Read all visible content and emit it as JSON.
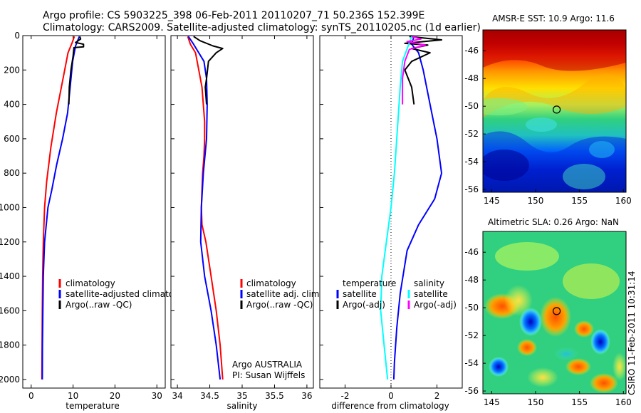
{
  "figure": {
    "title_line1": "Argo profile: CS 5903225_398 06-Feb-2011 20110207_71 50.236S 152.399E",
    "title_line2": "Climatology: CARS2009. Satellite-adjusted climatology: synTS_20110205.nc (1d earlier)",
    "credit": "CSIRO 11-Feb-2011 10:31:14"
  },
  "colors": {
    "climatology": "#ff0000",
    "satellite": "#0000ff",
    "argo": "#000000",
    "salinity_satellite": "#00ffff",
    "salinity_argo": "#ff00ff"
  },
  "chart_data": [
    {
      "type": "line",
      "panel": "temperature",
      "xlabel": "temperature",
      "ylabel": "",
      "xlim": [
        -2,
        32
      ],
      "ylim": [
        2050,
        0
      ],
      "xticks": [
        0,
        10,
        20,
        30
      ],
      "yticks": [
        0,
        200,
        400,
        600,
        800,
        1000,
        1200,
        1400,
        1600,
        1800,
        2000
      ],
      "legend": [
        "climatology",
        "satellite-adjusted climatolog",
        "Argo(..raw -QC)"
      ],
      "series": [
        {
          "name": "climatology",
          "color": "#ff0000",
          "points": [
            [
              10.3,
              5
            ],
            [
              9.8,
              40
            ],
            [
              8.8,
              100
            ],
            [
              7.6,
              250
            ],
            [
              6.0,
              450
            ],
            [
              4.7,
              650
            ],
            [
              3.7,
              850
            ],
            [
              3.2,
              1000
            ],
            [
              2.9,
              1200
            ],
            [
              2.75,
              1400
            ],
            [
              2.65,
              1600
            ],
            [
              2.6,
              1800
            ],
            [
              2.55,
              2000
            ]
          ]
        },
        {
          "name": "satellite-adjusted climatolog",
          "color": "#0000ff",
          "points": [
            [
              11.5,
              5
            ],
            [
              10.6,
              60
            ],
            [
              9.9,
              150
            ],
            [
              9.3,
              300
            ],
            [
              8.7,
              450
            ],
            [
              7.5,
              600
            ],
            [
              6.1,
              750
            ],
            [
              4.9,
              900
            ],
            [
              4.0,
              1000
            ],
            [
              3.2,
              1200
            ],
            [
              2.9,
              1400
            ],
            [
              2.8,
              1600
            ],
            [
              2.7,
              1800
            ],
            [
              2.65,
              2000
            ]
          ]
        },
        {
          "name": "Argo(..raw -QC)",
          "color": "#000000",
          "points": [
            [
              11.6,
              5
            ],
            [
              11.8,
              20
            ],
            [
              10.6,
              40
            ],
            [
              12.5,
              50
            ],
            [
              12.5,
              65
            ],
            [
              10.2,
              70
            ],
            [
              10.0,
              120
            ],
            [
              9.5,
              200
            ],
            [
              9.1,
              300
            ],
            [
              9.0,
              400
            ]
          ]
        }
      ]
    },
    {
      "type": "line",
      "panel": "salinity",
      "xlabel": "salinity",
      "ylabel": "",
      "xlim": [
        33.9,
        36.1
      ],
      "ylim": [
        2050,
        0
      ],
      "xticks": [
        34,
        34.5,
        35,
        35.5,
        36
      ],
      "yticks": [],
      "legend": [
        "climatology",
        "satellite adj. clim.",
        "Argo(..raw -QC)"
      ],
      "annotation": [
        "Argo AUSTRALIA",
        "PI: Susan Wijffels"
      ],
      "series": [
        {
          "name": "climatology",
          "color": "#ff0000",
          "points": [
            [
              34.16,
              5
            ],
            [
              34.2,
              50
            ],
            [
              34.28,
              100
            ],
            [
              34.33,
              200
            ],
            [
              34.38,
              300
            ],
            [
              34.42,
              500
            ],
            [
              34.42,
              600
            ],
            [
              34.41,
              700
            ],
            [
              34.39,
              800
            ],
            [
              34.37,
              1000
            ],
            [
              34.38,
              1100
            ],
            [
              34.44,
              1200
            ],
            [
              34.52,
              1400
            ],
            [
              34.6,
              1600
            ],
            [
              34.66,
              1800
            ],
            [
              34.7,
              2000
            ]
          ]
        },
        {
          "name": "satellite adj. clim.",
          "color": "#0000ff",
          "points": [
            [
              34.17,
              5
            ],
            [
              34.25,
              50
            ],
            [
              34.41,
              150
            ],
            [
              34.45,
              250
            ],
            [
              34.46,
              400
            ],
            [
              34.45,
              600
            ],
            [
              34.4,
              800
            ],
            [
              34.37,
              1000
            ],
            [
              34.36,
              1200
            ],
            [
              34.42,
              1400
            ],
            [
              34.52,
              1600
            ],
            [
              34.6,
              1800
            ],
            [
              34.66,
              2000
            ]
          ]
        },
        {
          "name": "Argo(..raw -QC)",
          "color": "#000000",
          "points": [
            [
              34.25,
              5
            ],
            [
              34.35,
              30
            ],
            [
              34.55,
              60
            ],
            [
              34.7,
              75
            ],
            [
              34.6,
              100
            ],
            [
              34.48,
              150
            ],
            [
              34.45,
              250
            ],
            [
              34.43,
              300
            ],
            [
              34.45,
              400
            ]
          ]
        }
      ]
    },
    {
      "type": "line",
      "panel": "difference",
      "xlabel": "difference from climatology",
      "ylabel": "",
      "xlim": [
        -3.1,
        3.1
      ],
      "ylim": [
        2050,
        0
      ],
      "xticks": [
        -2,
        0,
        2
      ],
      "yticks": [],
      "legend_temperature_header": "temperature",
      "legend_salinity_header": "salinity",
      "legend": [
        "satellite",
        "Argo(-adj)",
        "satellite",
        "Argo(-adj)"
      ],
      "series": [
        {
          "name": "satellite",
          "group": "temperature",
          "color": "#0000ff",
          "points": [
            [
              1.0,
              5
            ],
            [
              0.9,
              50
            ],
            [
              1.2,
              100
            ],
            [
              1.4,
              200
            ],
            [
              1.7,
              400
            ],
            [
              2.0,
              600
            ],
            [
              2.2,
              800
            ],
            [
              1.9,
              950
            ],
            [
              1.2,
              1100
            ],
            [
              0.7,
              1250
            ],
            [
              0.4,
              1500
            ],
            [
              0.25,
              1700
            ],
            [
              0.15,
              1900
            ],
            [
              0.12,
              2000
            ]
          ]
        },
        {
          "name": "Argo(-adj)",
          "group": "temperature",
          "color": "#000000",
          "points": [
            [
              0.8,
              5
            ],
            [
              2.2,
              25
            ],
            [
              0.6,
              45
            ],
            [
              1.6,
              55
            ],
            [
              0.9,
              75
            ],
            [
              1.7,
              100
            ],
            [
              0.9,
              150
            ],
            [
              0.6,
              200
            ],
            [
              0.9,
              300
            ],
            [
              1.0,
              400
            ]
          ]
        },
        {
          "name": "satellite",
          "group": "salinity",
          "color": "#00ffff",
          "points": [
            [
              0.9,
              5
            ],
            [
              0.5,
              150
            ],
            [
              0.4,
              300
            ],
            [
              0.3,
              500
            ],
            [
              0.15,
              800
            ],
            [
              0.0,
              1000
            ],
            [
              -0.2,
              1200
            ],
            [
              -0.4,
              1400
            ],
            [
              -0.45,
              1600
            ],
            [
              -0.3,
              1800
            ],
            [
              -0.15,
              2000
            ]
          ]
        },
        {
          "name": "Argo(-adj)",
          "group": "salinity",
          "color": "#ff00ff",
          "points": [
            [
              0.9,
              5
            ],
            [
              1.3,
              20
            ],
            [
              0.7,
              35
            ],
            [
              1.5,
              55
            ],
            [
              0.8,
              80
            ],
            [
              0.6,
              150
            ],
            [
              0.5,
              250
            ],
            [
              0.5,
              400
            ]
          ]
        }
      ]
    },
    {
      "type": "heatmap",
      "panel": "sst-map",
      "title": "AMSR-E SST: 10.9 Argo: 11.6",
      "xlim": [
        144,
        160.3
      ],
      "ylim": [
        -56.2,
        -44.5
      ],
      "xticks": [
        145,
        150,
        155,
        160
      ],
      "yticks": [
        -46,
        -48,
        -50,
        -52,
        -54,
        -56
      ],
      "marker": {
        "lon": 152.4,
        "lat": -50.24
      }
    },
    {
      "type": "heatmap",
      "panel": "sla-map",
      "title": "Altimetric SLA: 0.26 Argo: NaN",
      "xlim": [
        144,
        160.3
      ],
      "ylim": [
        -56.2,
        -44.5
      ],
      "xticks": [
        145,
        150,
        155,
        160
      ],
      "yticks": [
        -46,
        -48,
        -50,
        -52,
        -54,
        -56
      ],
      "marker": {
        "lon": 152.4,
        "lat": -50.24
      }
    }
  ]
}
